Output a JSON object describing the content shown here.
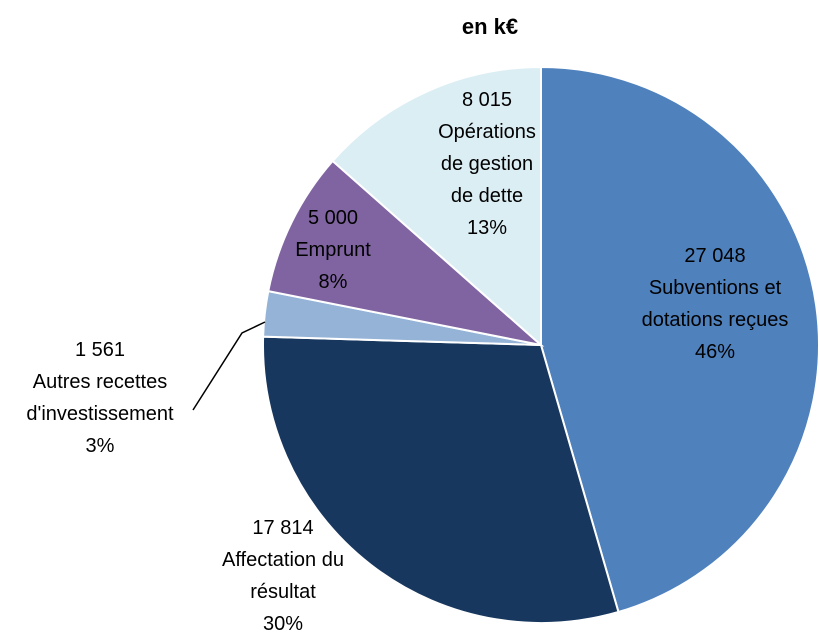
{
  "chart_data": {
    "type": "pie",
    "title": "en k€",
    "categories": [
      "Subventions et dotations reçues",
      "Affectation du résultat",
      "Autres recettes d'investissement",
      "Emprunt",
      "Opérations de gestion de dette"
    ],
    "values": [
      27048,
      17814,
      1561,
      5000,
      8015
    ],
    "value_labels": [
      "27 048",
      "17 814",
      "1 561",
      "5 000",
      "8 015"
    ],
    "percent_labels": [
      "46%",
      "30%",
      "3%",
      "8%",
      "13%"
    ],
    "colors": [
      "#4f81bd",
      "#17375e",
      "#95b3d7",
      "#8064a2",
      "#dbeef4"
    ]
  }
}
